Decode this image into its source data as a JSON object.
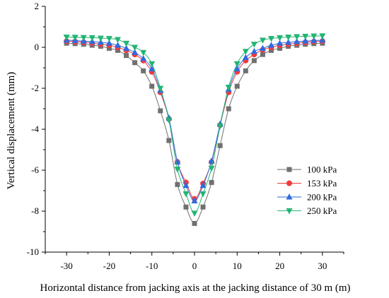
{
  "chart_data": {
    "type": "line",
    "xlabel": "Horizontal distance from jacking axis at the jacking distance of 30 m (m)",
    "ylabel": "Vertical displacement (mm)",
    "xlim": [
      -35,
      35
    ],
    "ylim": [
      -10,
      2
    ],
    "xticks": [
      -30,
      -20,
      -10,
      0,
      10,
      20,
      30
    ],
    "yticks": [
      -10,
      -8,
      -6,
      -4,
      -2,
      0,
      2
    ],
    "grid": false,
    "legend_position": "right",
    "x": [
      -30,
      -28,
      -26,
      -24,
      -22,
      -20,
      -18,
      -16,
      -14,
      -12,
      -10,
      -8,
      -6,
      -4,
      -2,
      0,
      2,
      4,
      6,
      8,
      10,
      12,
      14,
      16,
      18,
      20,
      22,
      24,
      26,
      28,
      30
    ],
    "series": [
      {
        "name": "100 kPa",
        "marker": "square",
        "color": "#707070",
        "values": [
          0.2,
          0.18,
          0.15,
          0.1,
          0.05,
          -0.05,
          -0.15,
          -0.4,
          -0.75,
          -1.15,
          -1.9,
          -3.1,
          -4.55,
          -6.7,
          -7.8,
          -8.6,
          -7.8,
          -6.6,
          -4.8,
          -3.0,
          -1.9,
          -1.15,
          -0.65,
          -0.35,
          -0.15,
          -0.05,
          0.05,
          0.1,
          0.15,
          0.18,
          0.2
        ]
      },
      {
        "name": "153 kPa",
        "marker": "circle",
        "color": "#f03c3c",
        "values": [
          0.3,
          0.28,
          0.25,
          0.2,
          0.15,
          0.1,
          0.0,
          -0.15,
          -0.35,
          -0.65,
          -1.2,
          -2.2,
          -3.5,
          -5.6,
          -6.6,
          -7.4,
          -6.65,
          -5.6,
          -3.8,
          -2.2,
          -1.2,
          -0.65,
          -0.35,
          -0.12,
          0.0,
          0.1,
          0.15,
          0.2,
          0.25,
          0.28,
          0.3
        ]
      },
      {
        "name": "200 kPa",
        "marker": "triangle-up",
        "color": "#2e6be0",
        "values": [
          0.35,
          0.33,
          0.3,
          0.28,
          0.24,
          0.2,
          0.1,
          -0.05,
          -0.25,
          -0.55,
          -1.05,
          -2.1,
          -3.45,
          -5.6,
          -6.75,
          -7.5,
          -6.75,
          -5.55,
          -3.75,
          -2.05,
          -1.05,
          -0.5,
          -0.2,
          -0.05,
          0.1,
          0.2,
          0.24,
          0.28,
          0.3,
          0.33,
          0.35
        ]
      },
      {
        "name": "250 kPa",
        "marker": "triangle-down",
        "color": "#22b573",
        "values": [
          0.5,
          0.49,
          0.48,
          0.47,
          0.45,
          0.43,
          0.38,
          0.2,
          0.0,
          -0.25,
          -0.8,
          -2.0,
          -3.55,
          -5.95,
          -7.15,
          -8.1,
          -7.15,
          -5.9,
          -3.85,
          -1.95,
          -0.8,
          -0.2,
          0.15,
          0.35,
          0.43,
          0.47,
          0.5,
          0.52,
          0.54,
          0.55,
          0.56
        ]
      }
    ]
  }
}
